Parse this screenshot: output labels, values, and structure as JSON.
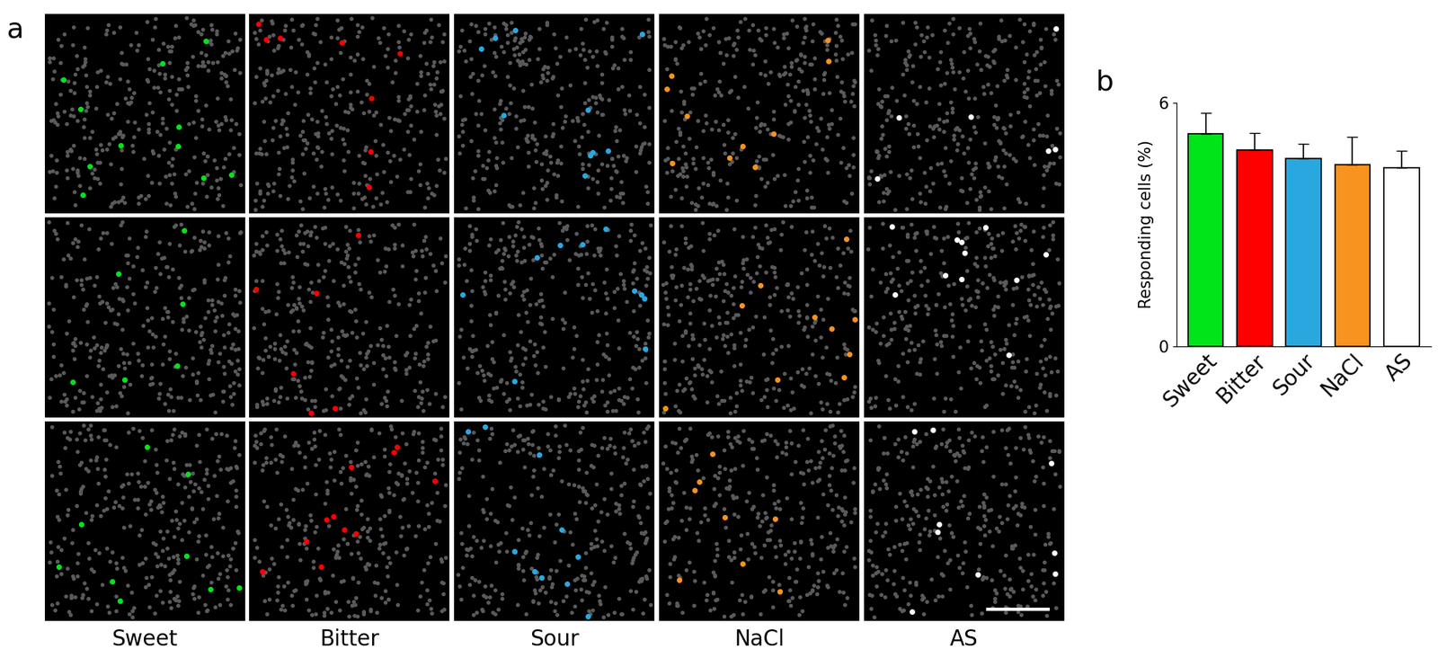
{
  "panel_labels": [
    "a",
    "b"
  ],
  "image_panels": {
    "columns": [
      "Sweet",
      "Bitter",
      "Sour",
      "NaCl",
      "AS"
    ]
  },
  "chart_data": {
    "type": "bar",
    "categories": [
      "Sweet",
      "Bitter",
      "Sour",
      "NaCl",
      "AS"
    ],
    "values": [
      5.24,
      4.83,
      4.63,
      4.47,
      4.4
    ],
    "errors": [
      0.5,
      0.43,
      0.36,
      0.68,
      0.41
    ],
    "colors": [
      "#00e51a",
      "#ff0000",
      "#29a8e0",
      "#f7931e",
      "#ffffff"
    ],
    "y_label": "Responding cells (%)",
    "ylim": [
      0,
      6
    ],
    "yticks": [
      0,
      6
    ],
    "grid": false
  }
}
